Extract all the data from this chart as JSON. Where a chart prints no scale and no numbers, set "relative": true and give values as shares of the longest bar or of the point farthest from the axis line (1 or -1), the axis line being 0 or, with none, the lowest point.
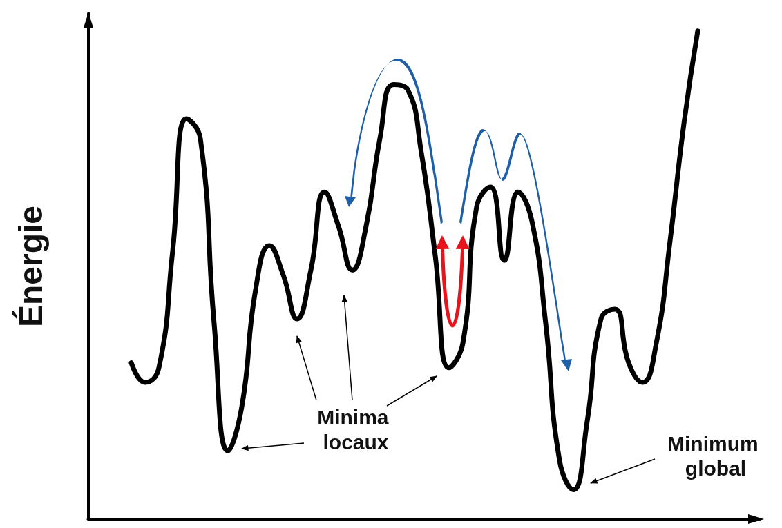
{
  "chart_data": {
    "type": "line",
    "relative": true,
    "ylabel": "Énergie",
    "categories": [
      null,
      null,
      null,
      null,
      null,
      null,
      null,
      null,
      null,
      null,
      null,
      null,
      null,
      null,
      null,
      null,
      null,
      null,
      null,
      null,
      null,
      null,
      null,
      null,
      null,
      null,
      null,
      null,
      null,
      null,
      null,
      null,
      null,
      null,
      null,
      null,
      null,
      null,
      null,
      null,
      null,
      null
    ],
    "series": [
      {
        "color": "#000000",
        "values": [
          0.32,
          0.28,
          0.31,
          0.55,
          0.82,
          0.78,
          0.4,
          0.14,
          0.23,
          0.47,
          0.56,
          0.5,
          0.41,
          0.51,
          0.67,
          0.6,
          0.51,
          0.6,
          0.78,
          0.89,
          0.88,
          0.75,
          0.54,
          0.31,
          0.36,
          0.64,
          0.68,
          0.53,
          0.67,
          0.61,
          0.4,
          0.12,
          0.06,
          0.2,
          0.41,
          0.43,
          0.32,
          0.28,
          0.36,
          0.57,
          0.81,
          1
        ]
      }
    ],
    "annotations": [
      "Minima locaux",
      "Minimum global"
    ]
  }
}
